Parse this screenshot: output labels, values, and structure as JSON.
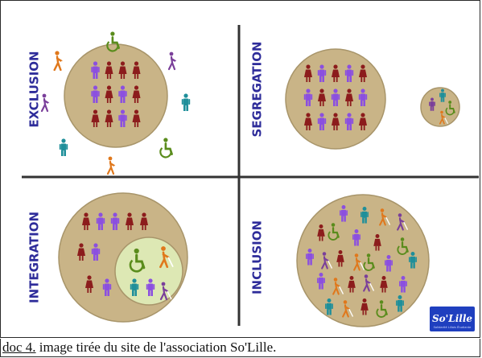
{
  "diagram": {
    "quadrants": [
      {
        "label": "EXCLUSION"
      },
      {
        "label": "SEGREGATION"
      },
      {
        "label": "INTEGRATION"
      },
      {
        "label": "INCLUSION"
      }
    ],
    "logo": {
      "text": "So'Lille",
      "tagline": "Solidarité Lillois Étudiante"
    },
    "colors": {
      "label": "#2e2c9a",
      "circle": "#c9b487",
      "circle_stroke": "#a8956a",
      "inner_circle": "#dde8b4",
      "divider": "#333333",
      "person_red": "#8c1c1c",
      "person_purple": "#8b4fe0",
      "person_teal": "#1f8f9a",
      "person_orange": "#e0781c",
      "person_green": "#5a8c1c",
      "person_lilac": "#7a3f9a",
      "logo_bg": "#1f3fbf"
    },
    "icons": [
      "person-icon",
      "wheelchair-icon",
      "blind-person-icon"
    ]
  },
  "caption": {
    "ref": "doc 4.",
    "text": " image tirée du site de l'association So'Lille."
  }
}
